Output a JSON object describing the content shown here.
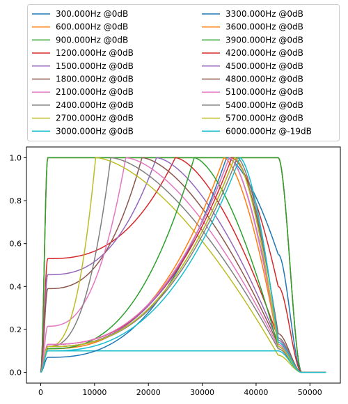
{
  "chart_data": {
    "type": "line",
    "title": "",
    "xlabel": "",
    "ylabel": "",
    "xlim": [
      -2650,
      55650
    ],
    "ylim": [
      -0.05,
      1.05
    ],
    "xticks": [
      0,
      10000,
      20000,
      30000,
      40000,
      50000
    ],
    "yticks": [
      0.0,
      0.2,
      0.4,
      0.6,
      0.8,
      1.0
    ],
    "grid": false,
    "legend_placement": "above-plot",
    "legend_columns": 2,
    "shelf_start": 1300,
    "shelf_end": 44100,
    "rolloff_end": 48500,
    "x_end": 53000,
    "series": [
      {
        "name": "300.000Hz @0dB",
        "color": "#1f77b4",
        "peak_x": null,
        "low": 1.0,
        "edge": 1.0
      },
      {
        "name": "600.000Hz @0dB",
        "color": "#ff7f0e",
        "peak_x": null,
        "low": 1.0,
        "edge": 1.0
      },
      {
        "name": "900.000Hz @0dB",
        "color": "#2ca02c",
        "peak_x": null,
        "low": 1.0,
        "edge": 1.0
      },
      {
        "name": "1200.000Hz @0dB",
        "color": "#d62728",
        "peak_x": 25000,
        "low": 0.53,
        "edge": 0.16
      },
      {
        "name": "1500.000Hz @0dB",
        "color": "#9467bd",
        "peak_x": 21500,
        "low": 0.455,
        "edge": 0.14
      },
      {
        "name": "1800.000Hz @0dB",
        "color": "#8c564b",
        "peak_x": 18800,
        "low": 0.39,
        "edge": 0.13
      },
      {
        "name": "2100.000Hz @0dB",
        "color": "#e377c2",
        "peak_x": 15800,
        "low": 0.215,
        "edge": 0.12
      },
      {
        "name": "2400.000Hz @0dB",
        "color": "#7f7f7f",
        "peak_x": 13000,
        "low": 0.12,
        "edge": 0.11
      },
      {
        "name": "2700.000Hz @0dB",
        "color": "#bcbd22",
        "peak_x": 10200,
        "low": 0.12,
        "edge": 0.08
      },
      {
        "name": "3000.000Hz @0dB",
        "color": "#17becf",
        "peak_x": null,
        "low": 0.1,
        "edge": 0.1
      },
      {
        "name": "3300.000Hz @0dB",
        "color": "#1f77b4",
        "peak_x": 34500,
        "low": 0.07,
        "edge": 0.55
      },
      {
        "name": "3600.000Hz @0dB",
        "color": "#ff7f0e",
        "peak_x": 34000,
        "low": 0.11,
        "edge": 0.13
      },
      {
        "name": "3900.000Hz @0dB",
        "color": "#2ca02c",
        "peak_x": 28500,
        "low": 0.11,
        "edge": 0.12
      },
      {
        "name": "4200.000Hz @0dB",
        "color": "#d62728",
        "peak_x": 35500,
        "low": 0.13,
        "edge": 0.4
      },
      {
        "name": "4500.000Hz @0dB",
        "color": "#9467bd",
        "peak_x": 35000,
        "low": 0.12,
        "edge": 0.15
      },
      {
        "name": "4800.000Hz @0dB",
        "color": "#8c564b",
        "peak_x": 36000,
        "low": 0.12,
        "edge": 0.18
      },
      {
        "name": "5100.000Hz @0dB",
        "color": "#e377c2",
        "peak_x": 35000,
        "low": 0.13,
        "edge": 0.13
      },
      {
        "name": "5400.000Hz @0dB",
        "color": "#7f7f7f",
        "peak_x": 36500,
        "low": 0.12,
        "edge": 0.16
      },
      {
        "name": "5700.000Hz @0dB",
        "color": "#bcbd22",
        "peak_x": 36000,
        "low": 0.12,
        "edge": 0.12
      },
      {
        "name": "6000.000Hz @-19dB",
        "color": "#17becf",
        "peak_x": 37000,
        "low": 0.1,
        "edge": 0.14
      }
    ]
  }
}
